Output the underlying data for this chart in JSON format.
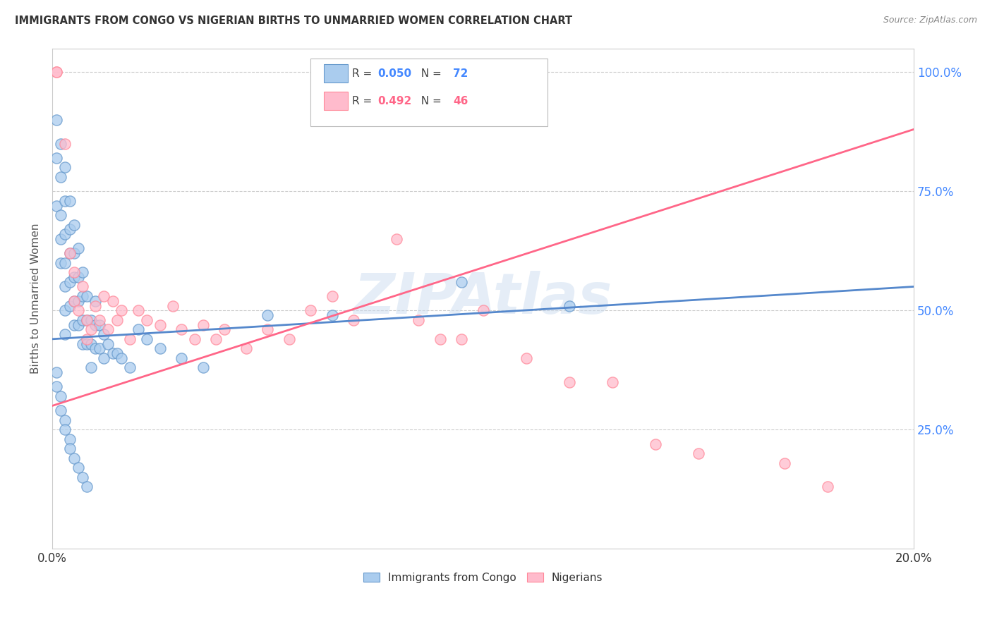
{
  "title": "IMMIGRANTS FROM CONGO VS NIGERIAN BIRTHS TO UNMARRIED WOMEN CORRELATION CHART",
  "source": "Source: ZipAtlas.com",
  "ylabel": "Births to Unmarried Women",
  "legend_blue_r": "0.050",
  "legend_blue_n": "72",
  "legend_pink_r": "0.492",
  "legend_pink_n": "46",
  "legend_label_blue": "Immigrants from Congo",
  "legend_label_pink": "Nigerians",
  "watermark": "ZIPAtlas",
  "blue_scatter_x": [
    0.001,
    0.001,
    0.001,
    0.002,
    0.002,
    0.002,
    0.002,
    0.002,
    0.003,
    0.003,
    0.003,
    0.003,
    0.003,
    0.003,
    0.003,
    0.004,
    0.004,
    0.004,
    0.004,
    0.004,
    0.005,
    0.005,
    0.005,
    0.005,
    0.005,
    0.006,
    0.006,
    0.006,
    0.006,
    0.007,
    0.007,
    0.007,
    0.007,
    0.008,
    0.008,
    0.008,
    0.009,
    0.009,
    0.009,
    0.01,
    0.01,
    0.01,
    0.011,
    0.011,
    0.012,
    0.012,
    0.013,
    0.014,
    0.015,
    0.016,
    0.018,
    0.02,
    0.022,
    0.025,
    0.03,
    0.035,
    0.001,
    0.001,
    0.002,
    0.002,
    0.003,
    0.003,
    0.004,
    0.004,
    0.005,
    0.006,
    0.007,
    0.008,
    0.05,
    0.065,
    0.095,
    0.12
  ],
  "blue_scatter_y": [
    0.9,
    0.82,
    0.72,
    0.85,
    0.78,
    0.7,
    0.65,
    0.6,
    0.8,
    0.73,
    0.66,
    0.6,
    0.55,
    0.5,
    0.45,
    0.73,
    0.67,
    0.62,
    0.56,
    0.51,
    0.68,
    0.62,
    0.57,
    0.52,
    0.47,
    0.63,
    0.57,
    0.52,
    0.47,
    0.58,
    0.53,
    0.48,
    0.43,
    0.53,
    0.48,
    0.43,
    0.48,
    0.43,
    0.38,
    0.52,
    0.47,
    0.42,
    0.47,
    0.42,
    0.45,
    0.4,
    0.43,
    0.41,
    0.41,
    0.4,
    0.38,
    0.46,
    0.44,
    0.42,
    0.4,
    0.38,
    0.37,
    0.34,
    0.32,
    0.29,
    0.27,
    0.25,
    0.23,
    0.21,
    0.19,
    0.17,
    0.15,
    0.13,
    0.49,
    0.49,
    0.56,
    0.51
  ],
  "pink_scatter_x": [
    0.001,
    0.001,
    0.003,
    0.004,
    0.005,
    0.005,
    0.006,
    0.007,
    0.008,
    0.008,
    0.009,
    0.01,
    0.011,
    0.012,
    0.013,
    0.014,
    0.015,
    0.016,
    0.018,
    0.02,
    0.022,
    0.025,
    0.028,
    0.03,
    0.033,
    0.035,
    0.038,
    0.04,
    0.045,
    0.05,
    0.055,
    0.06,
    0.065,
    0.07,
    0.08,
    0.085,
    0.09,
    0.095,
    0.1,
    0.11,
    0.12,
    0.13,
    0.14,
    0.15,
    0.17,
    0.18
  ],
  "pink_scatter_y": [
    1.0,
    1.0,
    0.85,
    0.62,
    0.58,
    0.52,
    0.5,
    0.55,
    0.48,
    0.44,
    0.46,
    0.51,
    0.48,
    0.53,
    0.46,
    0.52,
    0.48,
    0.5,
    0.44,
    0.5,
    0.48,
    0.47,
    0.51,
    0.46,
    0.44,
    0.47,
    0.44,
    0.46,
    0.42,
    0.46,
    0.44,
    0.5,
    0.53,
    0.48,
    0.65,
    0.48,
    0.44,
    0.44,
    0.5,
    0.4,
    0.35,
    0.35,
    0.22,
    0.2,
    0.18,
    0.13
  ],
  "blue_line_x": [
    0.0,
    0.2
  ],
  "blue_line_y": [
    0.44,
    0.55
  ],
  "pink_line_x": [
    0.0,
    0.2
  ],
  "pink_line_y": [
    0.3,
    0.88
  ],
  "xmin": 0.0,
  "xmax": 0.2,
  "ymin": 0.0,
  "ymax": 1.05,
  "background_color": "#FFFFFF",
  "grid_color": "#DDDDDD",
  "blue_dot_face": "#AACCEE",
  "blue_dot_edge": "#6699CC",
  "pink_dot_face": "#FFBBCC",
  "pink_dot_edge": "#FF8899",
  "blue_line_color": "#5588CC",
  "pink_line_color": "#FF6688"
}
